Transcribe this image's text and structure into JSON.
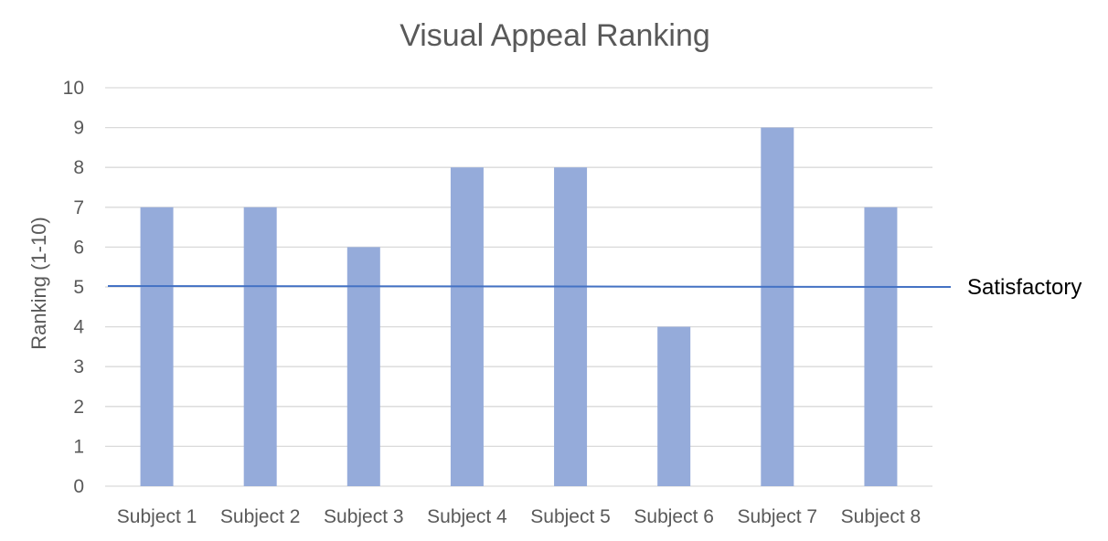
{
  "chart_data": {
    "type": "bar",
    "title": "Visual Appeal Ranking",
    "xlabel": "",
    "ylabel": "Ranking (1-10)",
    "categories": [
      "Subject 1",
      "Subject 2",
      "Subject 3",
      "Subject 4",
      "Subject 5",
      "Subject 6",
      "Subject 7",
      "Subject 8"
    ],
    "values": [
      7,
      7,
      6,
      8,
      8,
      4,
      9,
      7
    ],
    "ylim": [
      0,
      10
    ],
    "yticks": [
      "0",
      "1",
      "2",
      "3",
      "4",
      "5",
      "6",
      "7",
      "8",
      "9",
      "10"
    ],
    "grid": true,
    "legend": "none",
    "reference_line": {
      "value": 5,
      "label": "Satisfactory"
    },
    "colors": {
      "bar": "#95ABDA",
      "reference_line": "#4472C4",
      "grid": "#D9D9D9",
      "text": "#595959"
    }
  }
}
